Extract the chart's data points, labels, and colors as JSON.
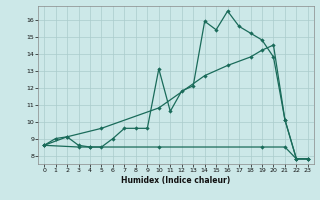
{
  "bg_color": "#cce8e8",
  "grid_color": "#aacccc",
  "line_color": "#1a6b5a",
  "xlabel": "Humidex (Indice chaleur)",
  "xlim": [
    -0.5,
    23.5
  ],
  "ylim": [
    7.5,
    16.8
  ],
  "xticks": [
    0,
    1,
    2,
    3,
    4,
    5,
    6,
    7,
    8,
    9,
    10,
    11,
    12,
    13,
    14,
    15,
    16,
    17,
    18,
    19,
    20,
    21,
    22,
    23
  ],
  "yticks": [
    8,
    9,
    10,
    11,
    12,
    13,
    14,
    15,
    16
  ],
  "line1_x": [
    0,
    1,
    2,
    3,
    4,
    5,
    6,
    7,
    8,
    9,
    10,
    11,
    12,
    13,
    14,
    15,
    16,
    17,
    18,
    19,
    20,
    21,
    22,
    23
  ],
  "line1_y": [
    8.6,
    9.0,
    9.1,
    8.6,
    8.5,
    8.5,
    9.0,
    9.6,
    9.6,
    9.6,
    13.1,
    10.6,
    11.8,
    12.1,
    15.9,
    15.4,
    16.5,
    15.6,
    15.2,
    14.8,
    13.8,
    10.1,
    7.8,
    7.8
  ],
  "line2_x": [
    0,
    2,
    5,
    10,
    14,
    16,
    18,
    19,
    20,
    21,
    22,
    23
  ],
  "line2_y": [
    8.6,
    9.1,
    9.6,
    10.8,
    12.7,
    13.3,
    13.8,
    14.2,
    14.5,
    10.1,
    7.8,
    7.8
  ],
  "line3_x": [
    0,
    3,
    4,
    10,
    19,
    21,
    22,
    23
  ],
  "line3_y": [
    8.6,
    8.5,
    8.5,
    8.5,
    8.5,
    8.5,
    7.8,
    7.8
  ]
}
